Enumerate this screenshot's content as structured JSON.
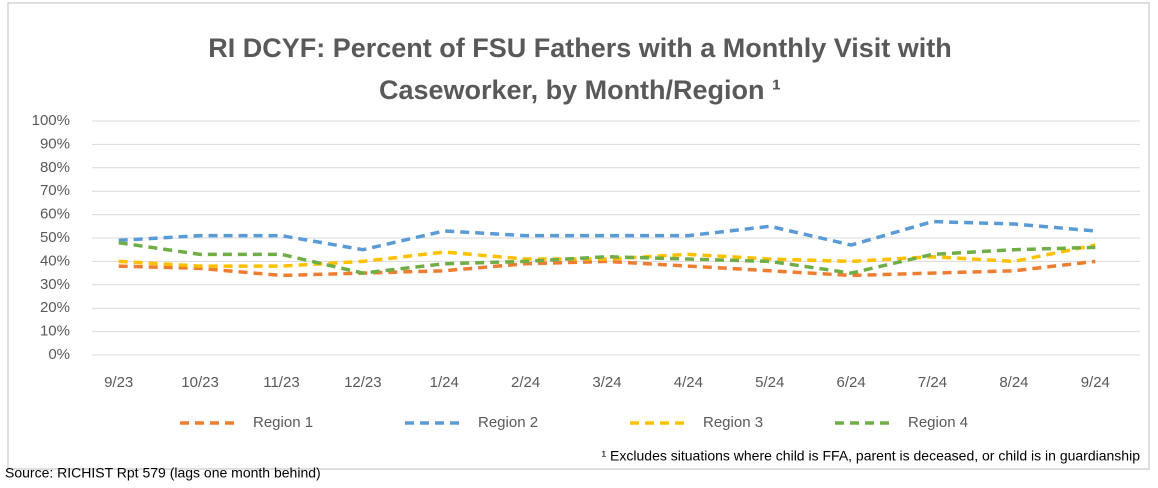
{
  "chart_data": {
    "type": "line",
    "title": [
      "RI DCYF: Percent of FSU Fathers with a Monthly Visit with",
      "Caseworker, by Month/Region ¹"
    ],
    "categories": [
      "9/23",
      "10/23",
      "11/23",
      "12/23",
      "1/24",
      "2/24",
      "3/24",
      "4/24",
      "5/24",
      "6/24",
      "7/24",
      "8/24",
      "9/24"
    ],
    "series": [
      {
        "name": "Region 1",
        "color": "#ed7d31",
        "values": [
          38,
          37,
          34,
          35,
          36,
          39,
          40,
          38,
          36,
          34,
          35,
          36,
          40
        ]
      },
      {
        "name": "Region 2",
        "color": "#5b9bd5",
        "values": [
          49,
          51,
          51,
          45,
          53,
          51,
          51,
          51,
          55,
          47,
          57,
          56,
          53
        ]
      },
      {
        "name": "Region 3",
        "color": "#ffc000",
        "values": [
          40,
          38,
          38,
          40,
          44,
          41,
          41,
          43,
          41,
          40,
          42,
          40,
          47
        ]
      },
      {
        "name": "Region 4",
        "color": "#70ad47",
        "values": [
          48,
          43,
          43,
          35,
          39,
          40,
          42,
          41,
          40,
          35,
          43,
          45,
          46
        ]
      }
    ],
    "ylim": [
      0,
      100
    ],
    "yticks": [
      {
        "value": 0,
        "label": "0%"
      },
      {
        "value": 10,
        "label": "10%"
      },
      {
        "value": 20,
        "label": "20%"
      },
      {
        "value": 30,
        "label": "30%"
      },
      {
        "value": 40,
        "label": "40%"
      },
      {
        "value": 50,
        "label": "50%"
      },
      {
        "value": 60,
        "label": "60%"
      },
      {
        "value": 70,
        "label": "70%"
      },
      {
        "value": 80,
        "label": "80%"
      },
      {
        "value": 90,
        "label": "90%"
      },
      {
        "value": 100,
        "label": "100%"
      }
    ],
    "grid": true,
    "legend": "bottom",
    "footnote": "¹ Excludes situations where child is FFA, parent is deceased, or child is in guardianship",
    "source": "Source: RICHIST Rpt 579 (lags one month behind)"
  }
}
